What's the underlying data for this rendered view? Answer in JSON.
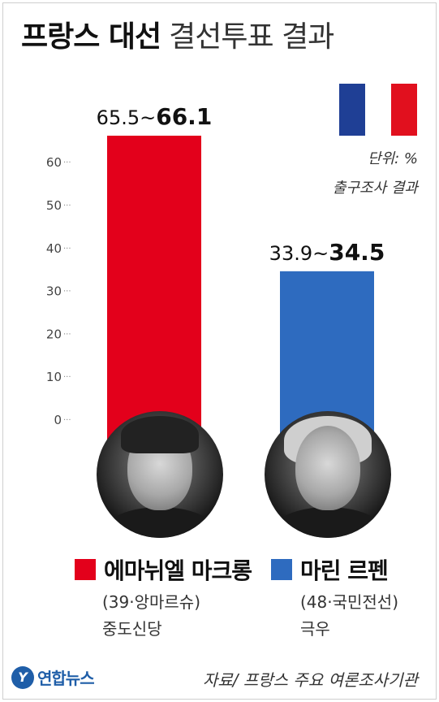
{
  "header": {
    "title_bold": "프랑스 대선",
    "title_light": "결선투표 결과"
  },
  "flag_colors": [
    "#1f3f95",
    "#ffffff",
    "#e1101e"
  ],
  "unit": "단위: %",
  "note": "출구조사 결과",
  "chart_data": {
    "type": "bar",
    "categories": [
      "에마뉘엘 마크롱",
      "마린 르펜"
    ],
    "values": [
      66.1,
      34.5
    ],
    "range_low": [
      65.5,
      33.9
    ],
    "range_low_labels": [
      "65.5",
      "33.9"
    ],
    "range_high_labels": [
      "66.1",
      "34.5"
    ],
    "range_sep": "~",
    "colors": [
      "#e3001b",
      "#2e6bbf"
    ],
    "ylim": [
      0,
      66.1
    ],
    "yticks": [
      0,
      10,
      20,
      30,
      40,
      50,
      60
    ],
    "ytick_labels": [
      "0",
      "10",
      "20",
      "30",
      "40",
      "50",
      "60"
    ],
    "tick_mark": "···",
    "grid": false
  },
  "candidates": [
    {
      "name": "에마뉘엘 마크롱",
      "detail": "(39·앙마르슈)",
      "party": "중도신당",
      "photo_icon": "portrait-macron-icon"
    },
    {
      "name": "마린 르펜",
      "detail": "(48·국민전선)",
      "party": "극우",
      "photo_icon": "portrait-lepen-icon"
    }
  ],
  "footer": {
    "logo_mark": "Y",
    "logo_text": "연합뉴스",
    "source": "자료/ 프랑스 주요 여론조사기관"
  }
}
